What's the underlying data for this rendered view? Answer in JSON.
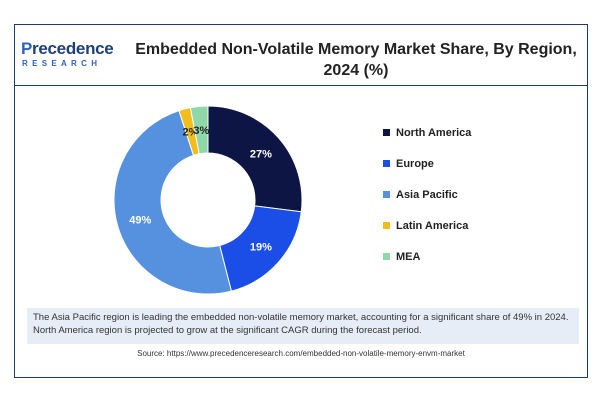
{
  "brand": {
    "logo_main_first": "P",
    "logo_main_rest": "recedence",
    "logo_sub": "RESEARCH"
  },
  "chart_data": {
    "type": "pie",
    "title": "Embedded Non-Volatile Memory Market Share, By Region, 2024 (%)",
    "categories": [
      "North America",
      "Europe",
      "Asia Pacific",
      "Latin America",
      "MEA"
    ],
    "values": [
      27,
      19,
      49,
      2,
      3
    ],
    "labels": [
      "27%",
      "19%",
      "49%",
      "2%",
      "3%"
    ],
    "colors": [
      "#0d1545",
      "#1a4ee6",
      "#5591df",
      "#f3bd1d",
      "#8fd8a9"
    ],
    "label_colors": [
      "#ffffff",
      "#ffffff",
      "#ffffff",
      "#222222",
      "#222222"
    ],
    "legend_position": "right",
    "donut": true
  },
  "note": "The Asia Pacific region is leading the embedded non-volatile memory market, accounting for a significant share of 49% in 2024. North America region is projected to grow at the significant CAGR during the forecast period.",
  "source": "Source: https://www.precedenceresearch.com/embedded-non-volatile-memory-envm-market"
}
